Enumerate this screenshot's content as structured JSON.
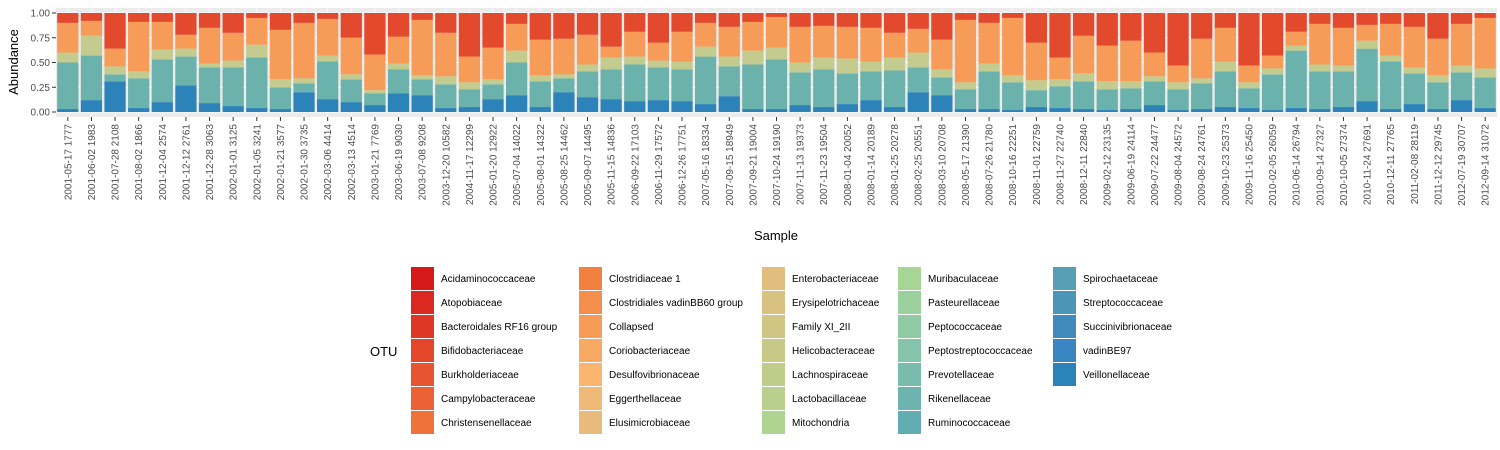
{
  "chart_data": {
    "type": "bar",
    "stacked": true,
    "xlabel": "Sample",
    "ylabel": "Abundance",
    "ylim": [
      0,
      1
    ],
    "y_ticks": [
      "0.00",
      "0.25",
      "0.50",
      "0.75",
      "1.00"
    ],
    "panel_background": "#ebebeb",
    "grid": true,
    "legend_title": "OTU",
    "legend_position": "bottom",
    "categories": [
      "2001-05-17 1777",
      "2001-06-02 1983",
      "2001-07-28 2108",
      "2001-08-02 1866",
      "2001-12-04 2574",
      "2001-12-12 2761",
      "2001-12-28 3063",
      "2002-01-01 3125",
      "2002-01-05 3241",
      "2002-01-21 3577",
      "2002-01-30 3735",
      "2002-03-06 4414",
      "2002-03-13 4514",
      "2003-01-21 7769",
      "2003-06-19 9030",
      "2003-07-08 9208",
      "2003-12-20 10582",
      "2004-11-17 12299",
      "2005-01-20 12922",
      "2005-07-04 14022",
      "2005-08-01 14322",
      "2005-08-25 14462",
      "2005-09-07 14495",
      "2005-11-15 14836",
      "2006-09-22 17103",
      "2006-11-29 17572",
      "2006-12-26 17751",
      "2007-05-16 18334",
      "2007-09-15 18949",
      "2007-09-21 19004",
      "2007-10-24 19190",
      "2007-11-13 19373",
      "2007-11-23 19504",
      "2008-01-04 20052",
      "2008-01-14 20189",
      "2008-01-25 20278",
      "2008-02-25 20551",
      "2008-03-10 20708",
      "2008-05-17 21390",
      "2008-07-26 21780",
      "2008-10-16 22251",
      "2008-11-01 22759",
      "2008-11-27 22740",
      "2008-12-11 22840",
      "2009-02-12 23135",
      "2009-06-19 24114",
      "2009-07-22 24477",
      "2009-08-04 24572",
      "2009-08-24 24761",
      "2009-10-23 25373",
      "2009-11-16 25450",
      "2010-02-05 26059",
      "2010-06-14 26794",
      "2010-09-14 27327",
      "2010-10-05 27374",
      "2010-11-24 27691",
      "2010-12-11 27765",
      "2011-02-08 28119",
      "2011-12-12 29745",
      "2012-07-19 30707",
      "2012-09-14 31072"
    ],
    "otus": [
      "Acidaminococcaceae",
      "Atopobiaceae",
      "Bacteroidales RF16 group",
      "Bifidobacteriaceae",
      "Burkholderiaceae",
      "Campylobacteraceae",
      "Christensenellaceae",
      "Clostridiaceae 1",
      "Clostridiales vadinBB60 group",
      "Collapsed",
      "Coriobacteriaceae",
      "Desulfovibrionaceae",
      "Eggerthellaceae",
      "Elusimicrobiaceae",
      "Enterobacteriaceae",
      "Erysipelotrichaceae",
      "Family XI_2II",
      "Helicobacteraceae",
      "Lachnospiraceae",
      "Lactobacillaceae",
      "Mitochondria",
      "Muribaculaceae",
      "Pasteurellaceae",
      "Peptococcaceae",
      "Peptostreptococcaceae",
      "Prevotellaceae",
      "Rikenellaceae",
      "Ruminococcaceae",
      "Spirochaetaceae",
      "Streptococcaceae",
      "Succinivibrionaceae",
      "vadinBE97",
      "Veillonellaceae"
    ],
    "otu_colors": [
      "#d7191c",
      "#db2821",
      "#df3726",
      "#e3462b",
      "#e75430",
      "#eb6335",
      "#ef723a",
      "#f2803f",
      "#f48e4c",
      "#f69b58",
      "#f8a963",
      "#fab66f",
      "#efb977",
      "#e6bb7b",
      "#e2be7e",
      "#d9c281",
      "#d1c584",
      "#c9c987",
      "#c0cc8a",
      "#b8cf8d",
      "#afd391",
      "#a6d596",
      "#9bd09e",
      "#90caa4",
      "#85c4aa",
      "#79bcad",
      "#6db4b0",
      "#62adb2",
      "#569fb5",
      "#4b95b8",
      "#418bbc",
      "#3885c1",
      "#2b83ba"
    ],
    "series_groups": [
      {
        "name": "Veillonellaceae",
        "color": "#2b83ba",
        "values": [
          0.03,
          0.12,
          0.31,
          0.04,
          0.1,
          0.27,
          0.09,
          0.06,
          0.04,
          0.03,
          0.2,
          0.13,
          0.1,
          0.07,
          0.19,
          0.17,
          0.04,
          0.05,
          0.13,
          0.17,
          0.05,
          0.2,
          0.15,
          0.13,
          0.11,
          0.12,
          0.11,
          0.08,
          0.16,
          0.03,
          0.03,
          0.07,
          0.05,
          0.08,
          0.12,
          0.05,
          0.2,
          0.17,
          0.03,
          0.03,
          0.02,
          0.05,
          0.04,
          0.03,
          0.02,
          0.03,
          0.07,
          0.02,
          0.03,
          0.05,
          0.04,
          0.02,
          0.04,
          0.03,
          0.05,
          0.11,
          0.03,
          0.08,
          0.03,
          0.12,
          0.04
        ]
      },
      {
        "name": "Ruminococcaceae",
        "color": "#6bb2ad",
        "values": [
          0.47,
          0.45,
          0.07,
          0.3,
          0.43,
          0.29,
          0.36,
          0.39,
          0.51,
          0.22,
          0.09,
          0.38,
          0.23,
          0.12,
          0.24,
          0.16,
          0.24,
          0.18,
          0.15,
          0.33,
          0.26,
          0.14,
          0.26,
          0.3,
          0.37,
          0.33,
          0.32,
          0.48,
          0.3,
          0.45,
          0.5,
          0.33,
          0.38,
          0.31,
          0.29,
          0.37,
          0.25,
          0.18,
          0.2,
          0.38,
          0.28,
          0.17,
          0.22,
          0.28,
          0.21,
          0.21,
          0.24,
          0.21,
          0.26,
          0.36,
          0.2,
          0.36,
          0.58,
          0.38,
          0.36,
          0.53,
          0.48,
          0.31,
          0.27,
          0.28,
          0.31
        ]
      },
      {
        "name": "Lachnospiraceae",
        "color": "#c3cc8e",
        "values": [
          0.1,
          0.2,
          0.08,
          0.07,
          0.1,
          0.08,
          0.04,
          0.07,
          0.13,
          0.08,
          0.05,
          0.06,
          0.05,
          0.03,
          0.06,
          0.04,
          0.08,
          0.07,
          0.05,
          0.12,
          0.06,
          0.04,
          0.07,
          0.12,
          0.08,
          0.07,
          0.08,
          0.1,
          0.1,
          0.14,
          0.12,
          0.1,
          0.12,
          0.15,
          0.1,
          0.13,
          0.15,
          0.08,
          0.07,
          0.08,
          0.07,
          0.1,
          0.07,
          0.08,
          0.08,
          0.07,
          0.05,
          0.07,
          0.05,
          0.1,
          0.06,
          0.06,
          0.05,
          0.07,
          0.06,
          0.08,
          0.06,
          0.06,
          0.07,
          0.07,
          0.09
        ]
      },
      {
        "name": "Collapsed",
        "color": "#f69b58",
        "values": [
          0.3,
          0.15,
          0.18,
          0.5,
          0.28,
          0.14,
          0.36,
          0.28,
          0.27,
          0.5,
          0.56,
          0.37,
          0.37,
          0.36,
          0.27,
          0.56,
          0.44,
          0.26,
          0.32,
          0.27,
          0.36,
          0.36,
          0.3,
          0.11,
          0.25,
          0.18,
          0.3,
          0.24,
          0.3,
          0.29,
          0.31,
          0.36,
          0.32,
          0.32,
          0.34,
          0.25,
          0.24,
          0.3,
          0.63,
          0.41,
          0.58,
          0.38,
          0.22,
          0.38,
          0.36,
          0.41,
          0.24,
          0.17,
          0.4,
          0.34,
          0.17,
          0.13,
          0.14,
          0.41,
          0.38,
          0.16,
          0.32,
          0.41,
          0.37,
          0.42,
          0.51
        ]
      },
      {
        "name": "Bifidobacteriaceae",
        "color": "#e34a2d",
        "values": [
          0.1,
          0.08,
          0.36,
          0.09,
          0.09,
          0.22,
          0.15,
          0.2,
          0.05,
          0.17,
          0.1,
          0.06,
          0.25,
          0.42,
          0.24,
          0.07,
          0.2,
          0.44,
          0.35,
          0.11,
          0.27,
          0.26,
          0.22,
          0.34,
          0.19,
          0.3,
          0.19,
          0.1,
          0.14,
          0.09,
          0.04,
          0.14,
          0.13,
          0.14,
          0.15,
          0.2,
          0.16,
          0.27,
          0.07,
          0.1,
          0.05,
          0.3,
          0.45,
          0.23,
          0.33,
          0.28,
          0.4,
          0.53,
          0.26,
          0.15,
          0.53,
          0.43,
          0.19,
          0.11,
          0.15,
          0.12,
          0.11,
          0.14,
          0.26,
          0.11,
          0.05
        ]
      }
    ]
  }
}
